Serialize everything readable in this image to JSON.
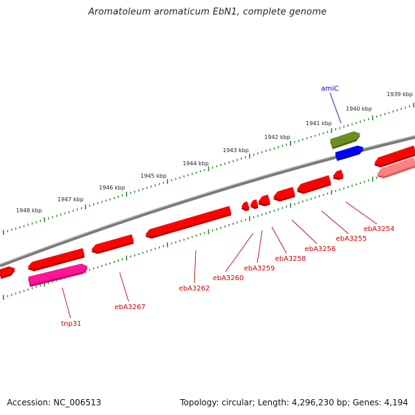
{
  "title": "Aromatoleum aromaticum EbN1, complete genome",
  "footer": {
    "accession": "Accession: NC_006513",
    "topology": "Topology: circular; Length: 4,296,230 bp; Genes: 4,194"
  },
  "scale": {
    "ticks": [
      "1939 kbp",
      "1940 kbp",
      "1941 kbp",
      "1942 kbp",
      "1943 kbp",
      "1944 kbp",
      "1945 kbp",
      "1946 kbp",
      "1947 kbp",
      "1948 kbp"
    ]
  },
  "colors": {
    "backbone": "#808080",
    "gene": "#ff0000",
    "gene_light": "#ff8080",
    "transposase": "#ff1493",
    "amic": "#6b8e23",
    "blue_feature": "#0000ff",
    "tick": "#228b22",
    "label_red": "#cc0000",
    "label_blue": "#0000cc"
  },
  "gene_labels": [
    "amiC",
    "ebA3254",
    "ebA3255",
    "ebA3256",
    "ebA3258",
    "ebA3259",
    "ebA3260",
    "ebA3262",
    "ebA3267",
    "tnp31"
  ]
}
